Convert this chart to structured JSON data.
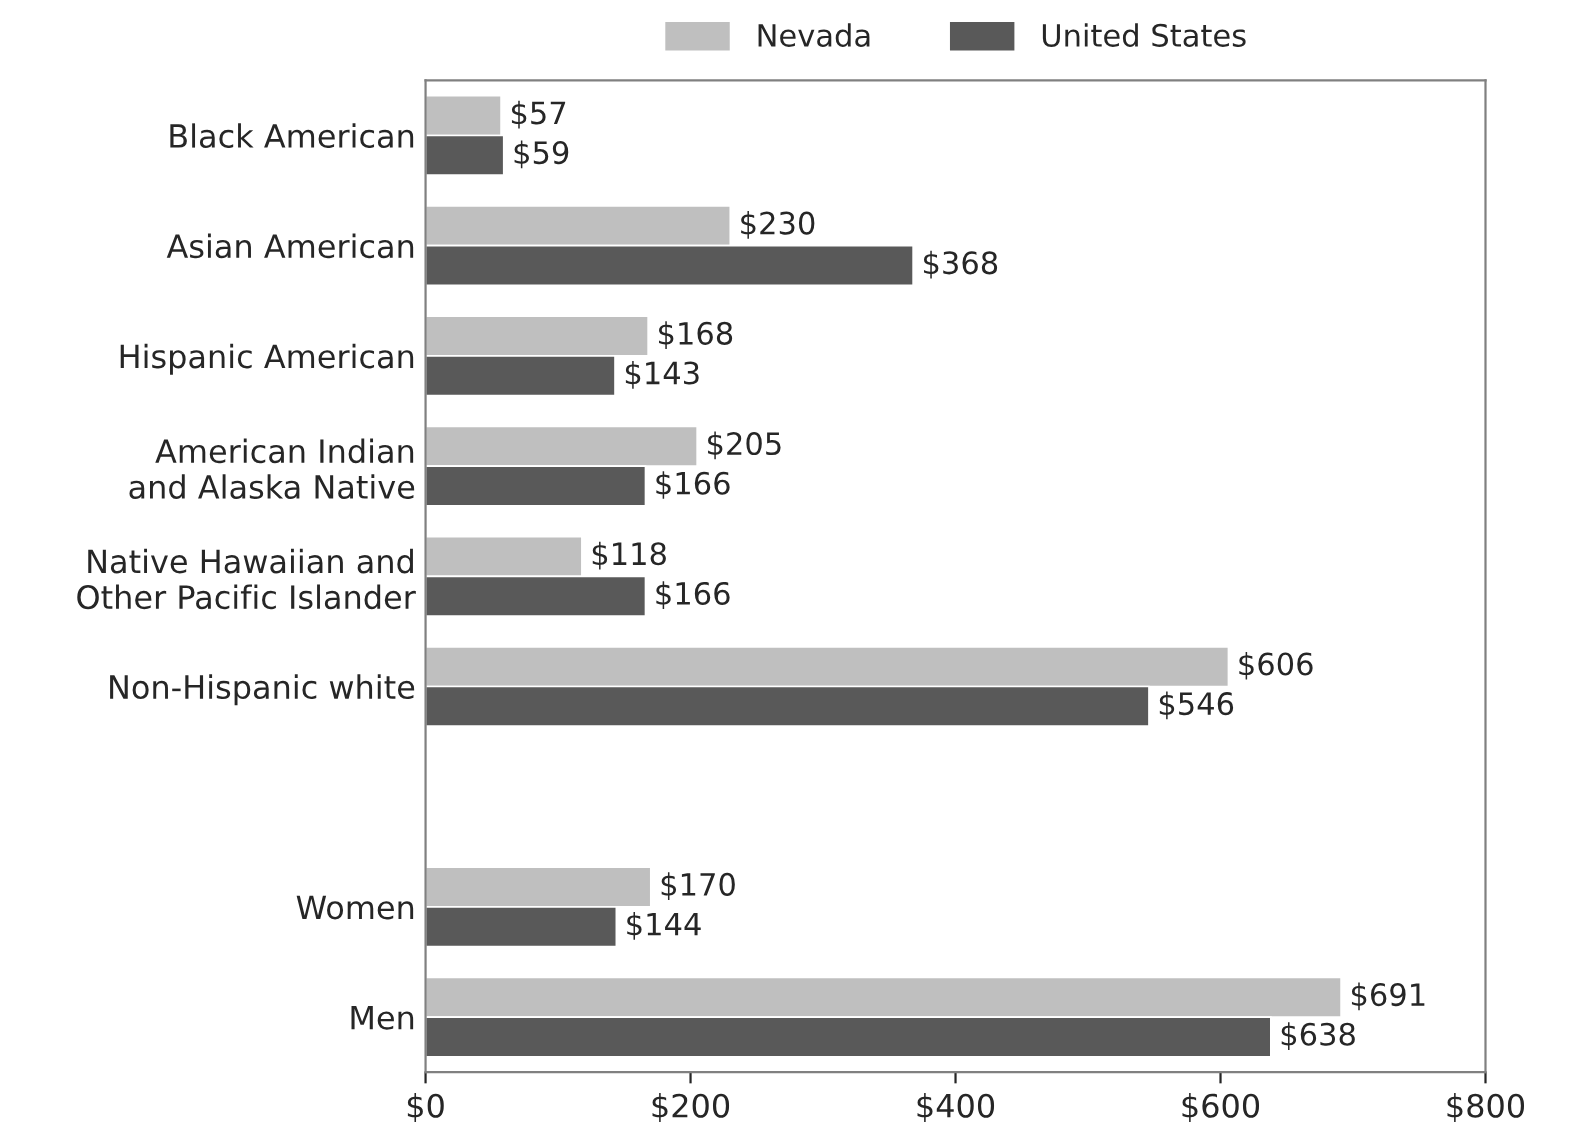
{
  "chart_data": {
    "type": "bar",
    "orientation": "horizontal",
    "categories": [
      "Black American",
      "Asian American",
      "Hispanic American",
      "American Indian\nand Alaska Native",
      "Native Hawaiian and\nOther Pacific Islander",
      "Non-Hispanic white",
      null,
      "Women",
      "Men"
    ],
    "series": [
      {
        "name": "Nevada",
        "color": "#bfbfbf",
        "values": [
          57,
          230,
          168,
          205,
          118,
          606,
          null,
          170,
          691
        ],
        "value_labels": [
          "$57",
          "$230",
          "$168",
          "$205",
          "$118",
          "$606",
          null,
          "$170",
          "$691"
        ]
      },
      {
        "name": "United States",
        "color": "#595959",
        "values": [
          59,
          368,
          143,
          166,
          166,
          546,
          null,
          144,
          638
        ],
        "value_labels": [
          "$59",
          "$368",
          "$143",
          "$166",
          "$166",
          "$546",
          null,
          "$144",
          "$638"
        ]
      }
    ],
    "xlim": [
      0,
      800
    ],
    "xticks": [
      {
        "value": 0,
        "label": "$0"
      },
      {
        "value": 200,
        "label": "$200"
      },
      {
        "value": 400,
        "label": "$400"
      },
      {
        "value": 600,
        "label": "$600"
      },
      {
        "value": 800,
        "label": "$800"
      }
    ],
    "grid": false,
    "legend": "top"
  }
}
